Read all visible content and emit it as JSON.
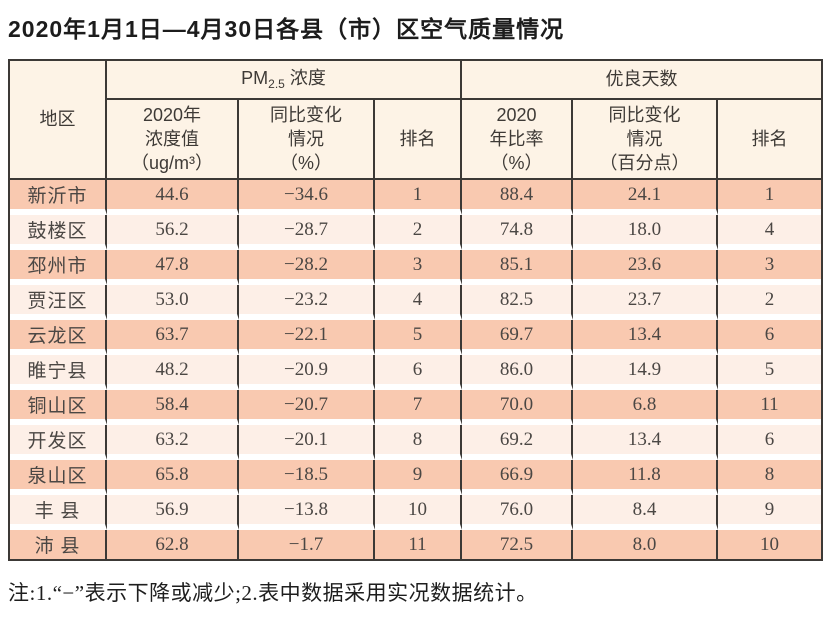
{
  "title": "2020年1月1日—4月30日各县（市）区空气质量情况",
  "table": {
    "region_header": "地区",
    "group_pm": {
      "prefix": "PM",
      "sub": "2.5",
      "suffix": " 浓度"
    },
    "group_good": "优良天数",
    "subheaders": {
      "pm_value": "2020年\n浓度值\n（ug/m³）",
      "pm_change": "同比变化\n情况\n（%）",
      "pm_rank": "排名",
      "good_ratio": "2020\n年比率\n（%）",
      "good_change": "同比变化\n情况\n（百分点）",
      "good_rank": "排名"
    },
    "rows": [
      {
        "region": "新沂市",
        "pm_value": "44.6",
        "pm_change": "−34.6",
        "pm_rank": "1",
        "good_ratio": "88.4",
        "good_change": "24.1",
        "good_rank": "1"
      },
      {
        "region": "鼓楼区",
        "pm_value": "56.2",
        "pm_change": "−28.7",
        "pm_rank": "2",
        "good_ratio": "74.8",
        "good_change": "18.0",
        "good_rank": "4"
      },
      {
        "region": "邳州市",
        "pm_value": "47.8",
        "pm_change": "−28.2",
        "pm_rank": "3",
        "good_ratio": "85.1",
        "good_change": "23.6",
        "good_rank": "3"
      },
      {
        "region": "贾汪区",
        "pm_value": "53.0",
        "pm_change": "−23.2",
        "pm_rank": "4",
        "good_ratio": "82.5",
        "good_change": "23.7",
        "good_rank": "2"
      },
      {
        "region": "云龙区",
        "pm_value": "63.7",
        "pm_change": "−22.1",
        "pm_rank": "5",
        "good_ratio": "69.7",
        "good_change": "13.4",
        "good_rank": "6"
      },
      {
        "region": "睢宁县",
        "pm_value": "48.2",
        "pm_change": "−20.9",
        "pm_rank": "6",
        "good_ratio": "86.0",
        "good_change": "14.9",
        "good_rank": "5"
      },
      {
        "region": "铜山区",
        "pm_value": "58.4",
        "pm_change": "−20.7",
        "pm_rank": "7",
        "good_ratio": "70.0",
        "good_change": "6.8",
        "good_rank": "11"
      },
      {
        "region": "开发区",
        "pm_value": "63.2",
        "pm_change": "−20.1",
        "pm_rank": "8",
        "good_ratio": "69.2",
        "good_change": "13.4",
        "good_rank": "6"
      },
      {
        "region": "泉山区",
        "pm_value": "65.8",
        "pm_change": "−18.5",
        "pm_rank": "9",
        "good_ratio": "66.9",
        "good_change": "11.8",
        "good_rank": "8"
      },
      {
        "region": "丰 县",
        "pm_value": "56.9",
        "pm_change": "−13.8",
        "pm_rank": "10",
        "good_ratio": "76.0",
        "good_change": "8.4",
        "good_rank": "9"
      },
      {
        "region": "沛 县",
        "pm_value": "62.8",
        "pm_change": "−1.7",
        "pm_rank": "11",
        "good_ratio": "72.5",
        "good_change": "8.0",
        "good_rank": "10"
      }
    ]
  },
  "footnote": "注:1.“−”表示下降或减少;2.表中数据采用实况数据统计。",
  "colors": {
    "row_odd": "#f9c9b0",
    "row_even": "#fdefe7",
    "header_bg": "#fdf3e6",
    "border": "#3c3936"
  }
}
